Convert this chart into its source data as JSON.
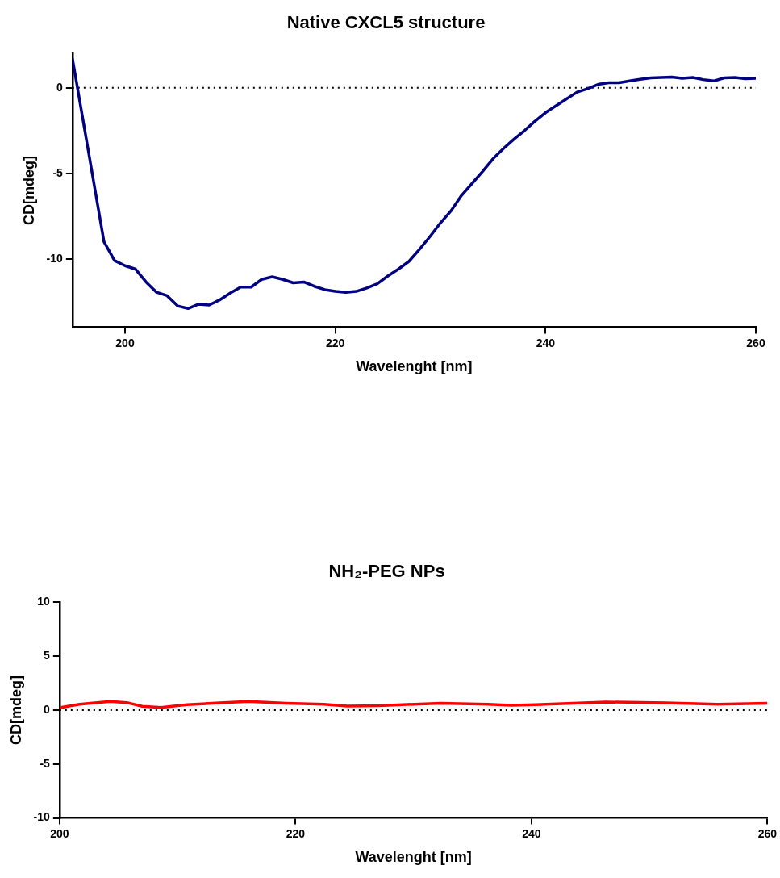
{
  "chart_data": [
    {
      "type": "line",
      "title": "Native CXCL5 structure",
      "xlabel": "Wavelenght [nm]",
      "ylabel": "CD[mdeg]",
      "xlim": [
        195,
        260
      ],
      "xticks": [
        200,
        220,
        240,
        260
      ],
      "ylim": [
        -14,
        2
      ],
      "yticks": [
        -10,
        -5,
        0
      ],
      "ref_lines": [
        {
          "axis": "y",
          "value": 0,
          "line_style": "dotted",
          "color": "#000000"
        }
      ],
      "series": [
        {
          "color": "#000080",
          "x": [
            195,
            198,
            199,
            200,
            201,
            202,
            203,
            204,
            205,
            206,
            207,
            208,
            209,
            210,
            211,
            212,
            213,
            214,
            215,
            216,
            217,
            218,
            219,
            220,
            221,
            222,
            223,
            224,
            225,
            226,
            227,
            228,
            229,
            230,
            231,
            232,
            233,
            234,
            235,
            236,
            237,
            238,
            239,
            240,
            241,
            242,
            243,
            244,
            245,
            246,
            247,
            248,
            249,
            250,
            251,
            252,
            253,
            254,
            255,
            256,
            257,
            258,
            259,
            260
          ],
          "values": [
            1.7,
            -9.0,
            -10.1,
            -10.4,
            -10.6,
            -11.35,
            -11.95,
            -12.15,
            -12.75,
            -12.9,
            -12.65,
            -12.7,
            -12.4,
            -12.0,
            -11.65,
            -11.65,
            -11.2,
            -11.05,
            -11.2,
            -11.4,
            -11.35,
            -11.6,
            -11.8,
            -11.9,
            -11.95,
            -11.9,
            -11.7,
            -11.45,
            -11.0,
            -10.6,
            -10.15,
            -9.45,
            -8.7,
            -7.9,
            -7.2,
            -6.3,
            -5.6,
            -4.9,
            -4.15,
            -3.55,
            -3.0,
            -2.5,
            -1.95,
            -1.45,
            -1.05,
            -0.65,
            -0.25,
            -0.05,
            0.2,
            0.3,
            0.3,
            0.4,
            0.5,
            0.58,
            0.6,
            0.63,
            0.56,
            0.6,
            0.48,
            0.4,
            0.58,
            0.6,
            0.53,
            0.56
          ]
        }
      ]
    },
    {
      "type": "line",
      "title": "NH₂-PEG NPs",
      "xlabel": "Wavelenght [nm]",
      "ylabel": "CD[mdeg]",
      "xlim": [
        200,
        260
      ],
      "xticks": [
        200,
        220,
        240,
        260
      ],
      "ylim": [
        -10,
        10
      ],
      "yticks": [
        -10,
        -5,
        0,
        5,
        10
      ],
      "ref_lines": [
        {
          "axis": "y",
          "value": 0,
          "line_style": "dotted",
          "color": "#000000"
        }
      ],
      "series": [
        {
          "color": "#ff0000",
          "x": [
            200,
            201.7,
            204.3,
            205.7,
            207,
            208.6,
            210.8,
            213.6,
            216,
            219.2,
            222.4,
            224.4,
            227.1,
            232.3,
            236.3,
            238.3,
            240.3,
            246.3,
            251.4,
            255.8,
            260
          ],
          "values": [
            0.23,
            0.55,
            0.8,
            0.7,
            0.36,
            0.25,
            0.5,
            0.68,
            0.8,
            0.64,
            0.55,
            0.38,
            0.42,
            0.64,
            0.55,
            0.45,
            0.5,
            0.75,
            0.68,
            0.55,
            0.64
          ]
        }
      ]
    }
  ]
}
